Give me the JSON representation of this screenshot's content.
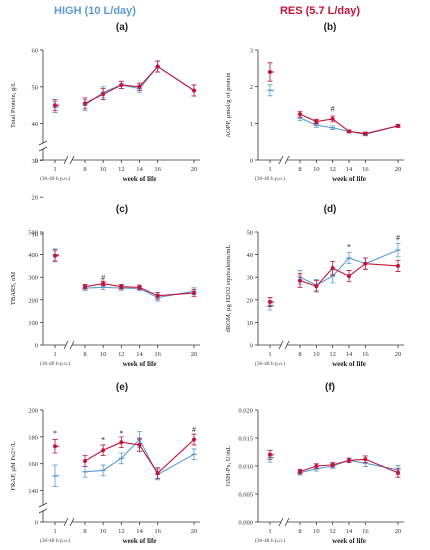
{
  "header": {
    "high_label": "HIGH (10 L/day)",
    "res_label": "RES (5.7 L/day)"
  },
  "colors": {
    "high": "#5b9bd5",
    "res": "#c0143c",
    "axis": "#333333"
  },
  "chart_data": [
    {
      "id": "a",
      "panel_label": "(a)",
      "type": "line",
      "ylabel": "Total Protein, g/L",
      "xlabel": "week of life",
      "x_sublabel": "(36-48 h p.o.)",
      "x": [
        1,
        8,
        10,
        12,
        14,
        16,
        20
      ],
      "x_tick_labels": [
        "1",
        "8",
        "10",
        "12",
        "14",
        "16",
        "20"
      ],
      "ylim": [
        0,
        60
      ],
      "y_ticks": [
        0,
        10,
        20,
        30,
        40,
        50,
        60
      ],
      "y_tick_labels": [
        "0",
        "10",
        "20",
        "30",
        "40",
        "50",
        "60"
      ],
      "axis_break": [
        5,
        35
      ],
      "series": [
        {
          "name": "HIGH (10 L/day)",
          "values": [
            44.5,
            45,
            48.5,
            50.5,
            49.5,
            55.5,
            49
          ],
          "err": [
            1.5,
            1.5,
            1.5,
            1,
            1,
            1.5,
            1.5
          ]
        },
        {
          "name": "RES (5.7 L/day)",
          "values": [
            45,
            45.5,
            48,
            50.5,
            50,
            55.5,
            49
          ],
          "err": [
            1.5,
            1.5,
            1.5,
            1,
            1,
            1.5,
            1.5
          ]
        }
      ],
      "annotations": []
    },
    {
      "id": "b",
      "panel_label": "(b)",
      "type": "line",
      "ylabel": "AOPP, µmol/g of protein",
      "xlabel": "week of life",
      "x_sublabel": "(36-48 h p.o.)",
      "x": [
        1,
        8,
        10,
        12,
        14,
        16,
        20
      ],
      "x_tick_labels": [
        "1",
        "8",
        "10",
        "12",
        "14",
        "16",
        "20"
      ],
      "ylim": [
        0,
        3
      ],
      "y_ticks": [
        0,
        1,
        2,
        3
      ],
      "y_tick_labels": [
        "0",
        "1",
        "2",
        "3"
      ],
      "series": [
        {
          "name": "HIGH (10 L/day)",
          "values": [
            1.9,
            1.15,
            0.95,
            0.88,
            0.78,
            0.7,
            0.93
          ],
          "err": [
            0.15,
            0.08,
            0.06,
            0.05,
            0.04,
            0.04,
            0.04
          ]
        },
        {
          "name": "RES (5.7 L/day)",
          "values": [
            2.4,
            1.25,
            1.05,
            1.12,
            0.78,
            0.72,
            0.93
          ],
          "err": [
            0.25,
            0.08,
            0.06,
            0.08,
            0.04,
            0.04,
            0.04
          ]
        }
      ],
      "annotations": [
        {
          "x": 12,
          "y": 1.4,
          "text": "#"
        }
      ]
    },
    {
      "id": "c",
      "panel_label": "(c)",
      "type": "line",
      "ylabel": "TBARS, nM",
      "xlabel": "week of life",
      "x_sublabel": "(36-48 h p.o.)",
      "x": [
        1,
        8,
        10,
        12,
        14,
        16,
        20
      ],
      "x_tick_labels": [
        "1",
        "8",
        "10",
        "12",
        "14",
        "16",
        "20"
      ],
      "ylim": [
        0,
        500
      ],
      "y_ticks": [
        0,
        100,
        200,
        300,
        400,
        500
      ],
      "y_tick_labels": [
        "0",
        "100",
        "200",
        "300",
        "400",
        "500"
      ],
      "series": [
        {
          "name": "HIGH (10 L/day)",
          "values": [
            400,
            252,
            255,
            252,
            250,
            210,
            238
          ],
          "err": [
            25,
            10,
            10,
            10,
            10,
            15,
            15
          ]
        },
        {
          "name": "RES (5.7 L/day)",
          "values": [
            395,
            258,
            272,
            258,
            255,
            218,
            230
          ],
          "err": [
            25,
            10,
            10,
            10,
            10,
            15,
            15
          ]
        }
      ],
      "annotations": [
        {
          "x": 10,
          "y": 298,
          "text": "#"
        }
      ]
    },
    {
      "id": "d",
      "panel_label": "(d)",
      "type": "line",
      "ylabel": "dROM, µg H2O2 equivalents/mL",
      "xlabel": "week of life",
      "x_sublabel": "(36-48 h p.o.)",
      "x": [
        1,
        8,
        10,
        12,
        14,
        16,
        20
      ],
      "x_tick_labels": [
        "1",
        "8",
        "10",
        "12",
        "14",
        "16",
        "20"
      ],
      "ylim": [
        0,
        50
      ],
      "y_ticks": [
        0,
        10,
        20,
        30,
        40,
        50
      ],
      "y_tick_labels": [
        "0",
        "10",
        "20",
        "30",
        "40",
        "50"
      ],
      "series": [
        {
          "name": "HIGH (10 L/day)",
          "values": [
            17.5,
            30,
            26.5,
            30.5,
            38.5,
            36,
            42
          ],
          "err": [
            2,
            3,
            2.5,
            3,
            2.5,
            2.5,
            3
          ]
        },
        {
          "name": "RES (5.7 L/day)",
          "values": [
            19,
            28.5,
            26,
            34,
            30.5,
            36,
            35
          ],
          "err": [
            2,
            3,
            2.5,
            3,
            2.5,
            2.5,
            2.5
          ]
        }
      ],
      "annotations": [
        {
          "x": 14,
          "y": 43.5,
          "text": "*"
        },
        {
          "x": 20,
          "y": 47.5,
          "text": "#"
        }
      ]
    },
    {
      "id": "e",
      "panel_label": "(e)",
      "type": "line",
      "ylabel": "FRAP, µM Fe2+/L",
      "xlabel": "week of life",
      "x_sublabel": "(36-48 h p.o.)",
      "x": [
        1,
        8,
        10,
        12,
        14,
        16,
        20
      ],
      "x_tick_labels": [
        "1",
        "8",
        "10",
        "12",
        "14",
        "16",
        "20"
      ],
      "ylim": [
        0,
        200
      ],
      "y_ticks": [
        0,
        140,
        160,
        180,
        200
      ],
      "y_tick_labels": [
        "0",
        "140",
        "160",
        "180",
        "200"
      ],
      "axis_break": [
        10,
        130
      ],
      "series": [
        {
          "name": "HIGH (10 L/day)",
          "values": [
            151,
            154,
            155,
            164,
            178,
            152,
            167
          ],
          "err": [
            8,
            4,
            4,
            4,
            6,
            4,
            4
          ]
        },
        {
          "name": "RES (5.7 L/day)",
          "values": [
            173,
            162,
            170,
            176,
            174,
            153,
            178
          ],
          "err": [
            5,
            4,
            4,
            4,
            5,
            4,
            4
          ]
        }
      ],
      "annotations": [
        {
          "x": 1,
          "y": 183,
          "text": "*"
        },
        {
          "x": 10,
          "y": 178,
          "text": "*"
        },
        {
          "x": 12,
          "y": 183,
          "text": "*"
        },
        {
          "x": 20,
          "y": 186,
          "text": "#"
        }
      ]
    },
    {
      "id": "f",
      "panel_label": "(f)",
      "type": "line",
      "ylabel": "GSH-Px, U/mL",
      "xlabel": "week of life",
      "x_sublabel": "(36-48 h p.o.)",
      "x": [
        1,
        8,
        10,
        12,
        14,
        16,
        20
      ],
      "x_tick_labels": [
        "1",
        "8",
        "10",
        "12",
        "14",
        "16",
        "20"
      ],
      "ylim": [
        0,
        0.02
      ],
      "y_ticks": [
        0,
        0.005,
        0.01,
        0.015,
        0.02
      ],
      "y_tick_labels": [
        "0.000",
        "0.005",
        "0.010",
        "0.015",
        "0.020"
      ],
      "series": [
        {
          "name": "HIGH (10 L/day)",
          "values": [
            0.0115,
            0.0088,
            0.0095,
            0.01,
            0.011,
            0.0105,
            0.0093
          ],
          "err": [
            0.0008,
            0.0004,
            0.0004,
            0.0004,
            0.0004,
            0.0006,
            0.0008
          ]
        },
        {
          "name": "RES (5.7 L/day)",
          "values": [
            0.012,
            0.009,
            0.01,
            0.0102,
            0.011,
            0.0112,
            0.0088
          ],
          "err": [
            0.0008,
            0.0004,
            0.0004,
            0.0004,
            0.0004,
            0.0006,
            0.0008
          ]
        }
      ],
      "annotations": []
    }
  ]
}
